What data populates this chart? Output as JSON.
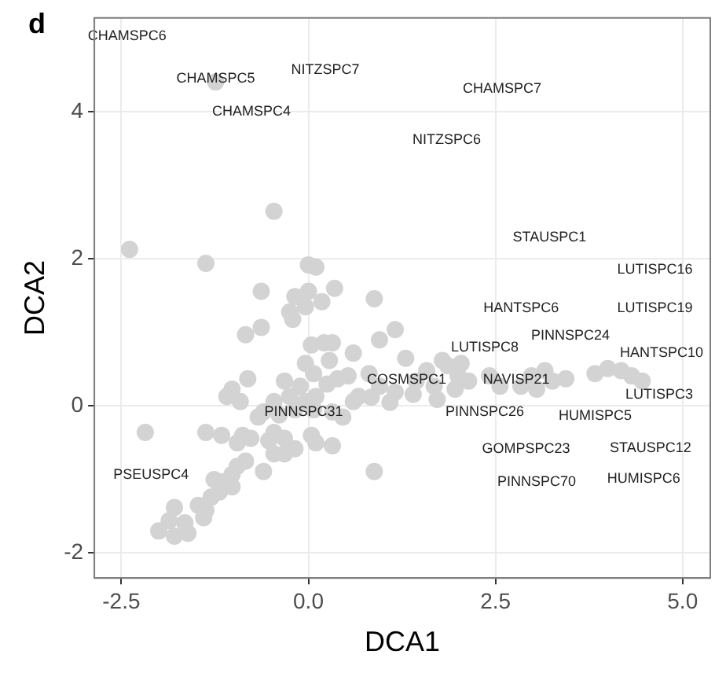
{
  "chart_data": {
    "type": "scatter",
    "title": "d",
    "xlabel": "DCA1",
    "ylabel": "DCA2",
    "xlim": [
      -2.86,
      5.37
    ],
    "ylim": [
      -2.34,
      5.28
    ],
    "xticks": [
      {
        "value": -2.5,
        "label": "-2.5"
      },
      {
        "value": 0,
        "label": "0.0"
      },
      {
        "value": 2.5,
        "label": "2.5"
      },
      {
        "value": 5,
        "label": "5.0"
      }
    ],
    "yticks": [
      -2,
      0,
      2,
      4
    ],
    "grid": true,
    "marker": "circle",
    "series": [
      {
        "color": "#d3d3d3",
        "x": [
          -2.39,
          -1.37,
          -0.46,
          0,
          0.1,
          -0.63,
          -0.18,
          0,
          0.35,
          0.18,
          -0.25,
          -0.04,
          -0.21,
          0.88,
          1.16,
          0.95,
          -0.84,
          -0.63,
          0.04,
          0.21,
          0.32,
          0.6,
          1.3,
          -0.04,
          0.28,
          0.07,
          0.53,
          -0.81,
          -1.02,
          -1.09,
          -0.91,
          -0.32,
          -0.11,
          0.25,
          0.39,
          0.81,
          0.95,
          0.67,
          -0.46,
          -0.25,
          -0.04,
          0.1,
          -0.6,
          -0.67,
          -0.39,
          -0.18,
          0.07,
          0.32,
          0.46,
          0.6,
          -2.18,
          -1.37,
          -1.16,
          -0.88,
          -0.77,
          -0.95,
          -0.46,
          -0.53,
          -0.32,
          -0.18,
          0.04,
          0.1,
          0.32,
          -0.46,
          -0.32,
          -0.84,
          -0.95,
          -0.6,
          -1.02,
          0.88,
          -1.16,
          -1.26,
          -1.02,
          -1.19,
          -1.3,
          -1.47,
          -1.37,
          -1.79,
          -1.4,
          -1.86,
          -2.0,
          -1.79,
          -1.61,
          -1.65,
          1.79,
          2.04,
          1.86,
          1.58,
          1.44,
          1.68,
          1.96,
          2.14,
          2.42,
          2.56,
          2.84,
          3.05,
          3.26,
          3.44,
          2.98,
          3.16,
          3.83,
          4.0,
          4.18,
          4.32,
          4.46,
          0.84,
          1.09,
          1.4,
          1.72,
          1.16,
          2.0,
          -1.24
        ],
        "values": [
          2.13,
          1.94,
          2.65,
          1.92,
          1.89,
          1.56,
          1.49,
          1.56,
          1.6,
          1.42,
          1.28,
          1.35,
          1.18,
          1.46,
          1.04,
          0.9,
          0.97,
          1.07,
          0.83,
          0.86,
          0.86,
          0.72,
          0.65,
          0.58,
          0.62,
          0.44,
          0.41,
          0.37,
          0.23,
          0.13,
          0.06,
          0.34,
          0.27,
          0.3,
          0.37,
          0.44,
          0.27,
          0.13,
          0.06,
          0.13,
          0.06,
          0.13,
          -0.08,
          -0.15,
          -0.12,
          -0.05,
          -0.05,
          -0.08,
          -0.15,
          0.06,
          -0.36,
          -0.36,
          -0.4,
          -0.4,
          -0.44,
          -0.5,
          -0.36,
          -0.47,
          -0.44,
          -0.58,
          -0.4,
          -0.5,
          -0.54,
          -0.65,
          -0.65,
          -0.75,
          -0.82,
          -0.89,
          -0.93,
          -0.89,
          -1.03,
          -1.0,
          -1.1,
          -1.17,
          -1.24,
          -1.35,
          -1.42,
          -1.38,
          -1.52,
          -1.56,
          -1.7,
          -1.77,
          -1.73,
          -1.59,
          0.62,
          0.58,
          0.55,
          0.48,
          0.34,
          0.27,
          0.23,
          0.34,
          0.41,
          0.27,
          0.27,
          0.23,
          0.34,
          0.37,
          0.41,
          0.48,
          0.44,
          0.51,
          0.48,
          0.41,
          0.34,
          0.12,
          0.05,
          0.16,
          0.09,
          0.19,
          0.41,
          4.41
        ]
      }
    ],
    "legend": false,
    "annotations": [
      "CHAMSPC6",
      "CHAMSPC5",
      "NITZSPC7",
      "CHAMSPC4",
      "CHAMSPC7",
      "NITZSPC6",
      "STAUSPC1",
      "LUTISPC16",
      "LUTISPC19",
      "HANTSPC6",
      "PINNSPC24",
      "HANTSPC10",
      "LUTISPC8",
      "COSMSPC1",
      "NAVISP21",
      "PINNSPC31",
      "PINNSPC26",
      "HUMISPC5",
      "LUTISPC3",
      "GOMPSPC23",
      "STAUSPC12",
      "PINNSPC70",
      "HUMISPC6",
      "PSEUSPC4"
    ]
  }
}
